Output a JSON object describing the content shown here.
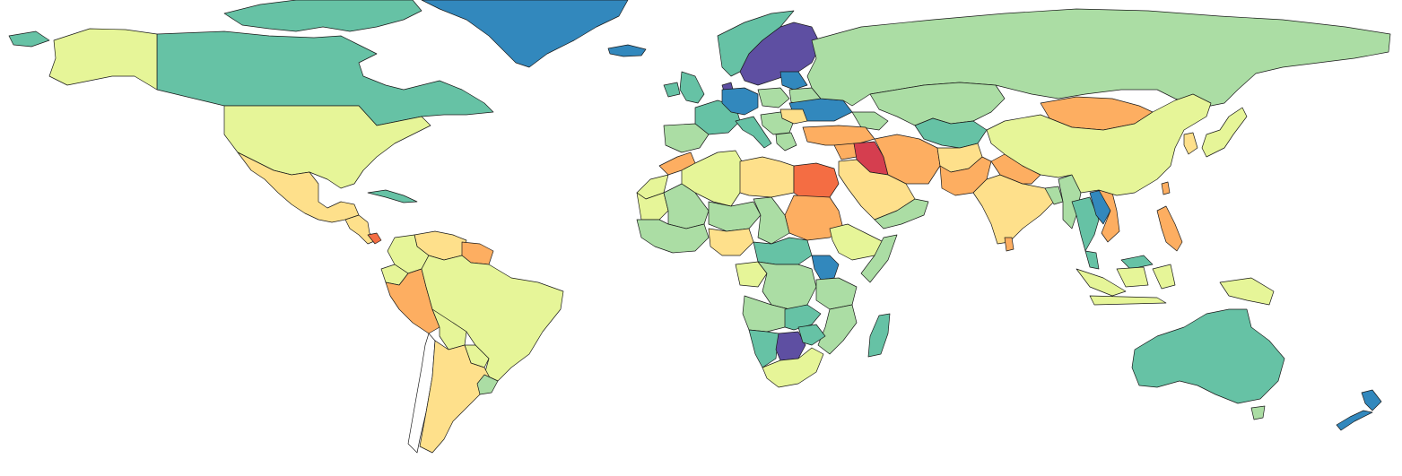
{
  "map": {
    "projection": "Mercator",
    "legend": "none",
    "background": "#ffffff",
    "border_color": "#1a1a1a",
    "color_scale": [
      "#5e4fa2",
      "#3288bd",
      "#66c2a5",
      "#abdda4",
      "#e6f598",
      "#fee08b",
      "#fdae61",
      "#f46d43",
      "#d53e4f"
    ],
    "regions": [
      {
        "id": "greenland",
        "color": "#3288bd"
      },
      {
        "id": "iceland",
        "color": "#3288bd"
      },
      {
        "id": "canada",
        "color": "#66c2a5"
      },
      {
        "id": "canada-islands",
        "color": "#66c2a5"
      },
      {
        "id": "alaska",
        "color": "#e6f598"
      },
      {
        "id": "usa",
        "color": "#e6f598"
      },
      {
        "id": "mexico",
        "color": "#fee08b"
      },
      {
        "id": "central-america",
        "color": "#fee08b"
      },
      {
        "id": "costa-rica",
        "color": "#f46d43"
      },
      {
        "id": "cuba",
        "color": "#66c2a5"
      },
      {
        "id": "venezuela",
        "color": "#fee08b"
      },
      {
        "id": "guianas",
        "color": "#fdae61"
      },
      {
        "id": "colombia",
        "color": "#e6f598"
      },
      {
        "id": "ecuador",
        "color": "#e6f598"
      },
      {
        "id": "peru",
        "color": "#fdae61"
      },
      {
        "id": "brazil",
        "color": "#e6f598"
      },
      {
        "id": "bolivia",
        "color": "#e6f598"
      },
      {
        "id": "paraguay",
        "color": "#e6f598"
      },
      {
        "id": "chile",
        "color": "#ffffff"
      },
      {
        "id": "argentina",
        "color": "#fee08b"
      },
      {
        "id": "uruguay",
        "color": "#abdda4"
      },
      {
        "id": "uk",
        "color": "#66c2a5"
      },
      {
        "id": "ireland",
        "color": "#66c2a5"
      },
      {
        "id": "norway",
        "color": "#66c2a5"
      },
      {
        "id": "sweden-finland",
        "color": "#5e4fa2"
      },
      {
        "id": "denmark",
        "color": "#5e4fa2"
      },
      {
        "id": "france",
        "color": "#66c2a5"
      },
      {
        "id": "iberia",
        "color": "#abdda4"
      },
      {
        "id": "germany",
        "color": "#3288bd"
      },
      {
        "id": "italy",
        "color": "#66c2a5"
      },
      {
        "id": "poland",
        "color": "#abdda4"
      },
      {
        "id": "baltics",
        "color": "#3288bd"
      },
      {
        "id": "belarus",
        "color": "#abdda4"
      },
      {
        "id": "ukraine",
        "color": "#3288bd"
      },
      {
        "id": "balkans",
        "color": "#abdda4"
      },
      {
        "id": "romania",
        "color": "#fee08b"
      },
      {
        "id": "greece",
        "color": "#abdda4"
      },
      {
        "id": "russia",
        "color": "#abdda4"
      },
      {
        "id": "kazakhstan",
        "color": "#abdda4"
      },
      {
        "id": "central-asia",
        "color": "#66c2a5"
      },
      {
        "id": "caucasus",
        "color": "#abdda4"
      },
      {
        "id": "turkey",
        "color": "#fdae61"
      },
      {
        "id": "syria",
        "color": "#fdae61"
      },
      {
        "id": "iraq",
        "color": "#d53e4f"
      },
      {
        "id": "iran",
        "color": "#fdae61"
      },
      {
        "id": "afghanistan",
        "color": "#fee08b"
      },
      {
        "id": "pakistan",
        "color": "#fdae61"
      },
      {
        "id": "saudi-arabia",
        "color": "#fee08b"
      },
      {
        "id": "yemen-oman",
        "color": "#abdda4"
      },
      {
        "id": "india",
        "color": "#fee08b"
      },
      {
        "id": "sri-lanka",
        "color": "#fdae61"
      },
      {
        "id": "nepal-bhutan",
        "color": "#fdae61"
      },
      {
        "id": "bangladesh",
        "color": "#abdda4"
      },
      {
        "id": "myanmar",
        "color": "#abdda4"
      },
      {
        "id": "thailand",
        "color": "#66c2a5"
      },
      {
        "id": "laos",
        "color": "#3288bd"
      },
      {
        "id": "vietnam",
        "color": "#fdae61"
      },
      {
        "id": "malaysia",
        "color": "#66c2a5"
      },
      {
        "id": "indonesia",
        "color": "#e6f598"
      },
      {
        "id": "philippines",
        "color": "#fdae61"
      },
      {
        "id": "papua-new-guinea",
        "color": "#e6f598"
      },
      {
        "id": "mongolia",
        "color": "#fdae61"
      },
      {
        "id": "china",
        "color": "#e6f598"
      },
      {
        "id": "korea",
        "color": "#fee08b"
      },
      {
        "id": "japan",
        "color": "#e6f598"
      },
      {
        "id": "taiwan",
        "color": "#fdae61"
      },
      {
        "id": "morocco",
        "color": "#fdae61"
      },
      {
        "id": "western-sahara",
        "color": "#e6f598"
      },
      {
        "id": "algeria",
        "color": "#e6f598"
      },
      {
        "id": "libya",
        "color": "#fee08b"
      },
      {
        "id": "egypt",
        "color": "#f46d43"
      },
      {
        "id": "sudan",
        "color": "#fdae61"
      },
      {
        "id": "mauritania",
        "color": "#e6f598"
      },
      {
        "id": "mali",
        "color": "#abdda4"
      },
      {
        "id": "niger",
        "color": "#abdda4"
      },
      {
        "id": "chad",
        "color": "#abdda4"
      },
      {
        "id": "west-africa",
        "color": "#abdda4"
      },
      {
        "id": "nigeria",
        "color": "#fee08b"
      },
      {
        "id": "ethiopia",
        "color": "#e6f598"
      },
      {
        "id": "somalia",
        "color": "#abdda4"
      },
      {
        "id": "central-africa",
        "color": "#66c2a5"
      },
      {
        "id": "gabon-congo",
        "color": "#e6f598"
      },
      {
        "id": "drc",
        "color": "#abdda4"
      },
      {
        "id": "uganda-kenya",
        "color": "#3288bd"
      },
      {
        "id": "tanzania",
        "color": "#abdda4"
      },
      {
        "id": "angola",
        "color": "#abdda4"
      },
      {
        "id": "zambia",
        "color": "#66c2a5"
      },
      {
        "id": "mozambique",
        "color": "#abdda4"
      },
      {
        "id": "namibia",
        "color": "#66c2a5"
      },
      {
        "id": "botswana",
        "color": "#5e4fa2"
      },
      {
        "id": "zimbabwe",
        "color": "#66c2a5"
      },
      {
        "id": "south-africa",
        "color": "#e6f598"
      },
      {
        "id": "madagascar",
        "color": "#66c2a5"
      },
      {
        "id": "australia",
        "color": "#66c2a5"
      },
      {
        "id": "tasmania",
        "color": "#abdda4"
      },
      {
        "id": "new-zealand",
        "color": "#3288bd"
      }
    ]
  }
}
